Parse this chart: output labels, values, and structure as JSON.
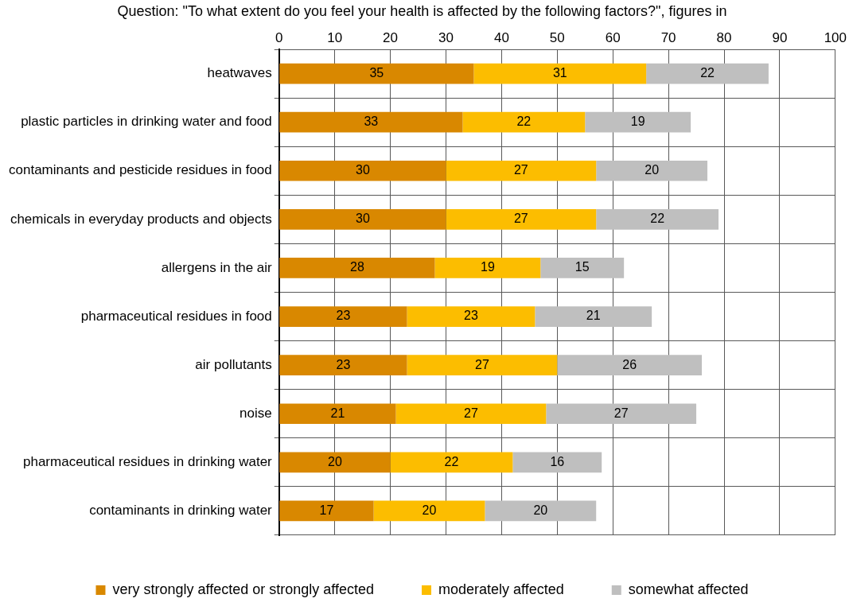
{
  "chart_data": {
    "type": "bar",
    "orientation": "horizontal",
    "stacked": true,
    "title": "Question: \"To what extent do you feel your health is affected by the following factors?\", figures in",
    "categories": [
      "heatwaves",
      "plastic particles in drinking water and food",
      "contaminants and pesticide residues in food",
      "chemicals in everyday products and objects",
      "allergens in the air",
      "pharmaceutical residues in food",
      "air pollutants",
      "noise",
      "pharmaceutical residues in drinking water",
      "contaminants in drinking water"
    ],
    "series": [
      {
        "name": "very strongly affected or strongly affected",
        "color": "#d98800",
        "values": [
          35,
          33,
          30,
          30,
          28,
          23,
          23,
          21,
          20,
          17
        ]
      },
      {
        "name": "moderately affected",
        "color": "#fcbd00",
        "values": [
          31,
          22,
          27,
          27,
          19,
          23,
          27,
          27,
          22,
          20
        ]
      },
      {
        "name": "somewhat affected",
        "color": "#bfbfbf",
        "values": [
          22,
          19,
          20,
          22,
          15,
          21,
          26,
          27,
          16,
          20
        ]
      }
    ],
    "xlim": [
      0,
      100
    ],
    "xticks": [
      0,
      10,
      20,
      30,
      40,
      50,
      60,
      70,
      80,
      90,
      100
    ],
    "grid": true,
    "legend": "bottom",
    "data_labels": true
  }
}
